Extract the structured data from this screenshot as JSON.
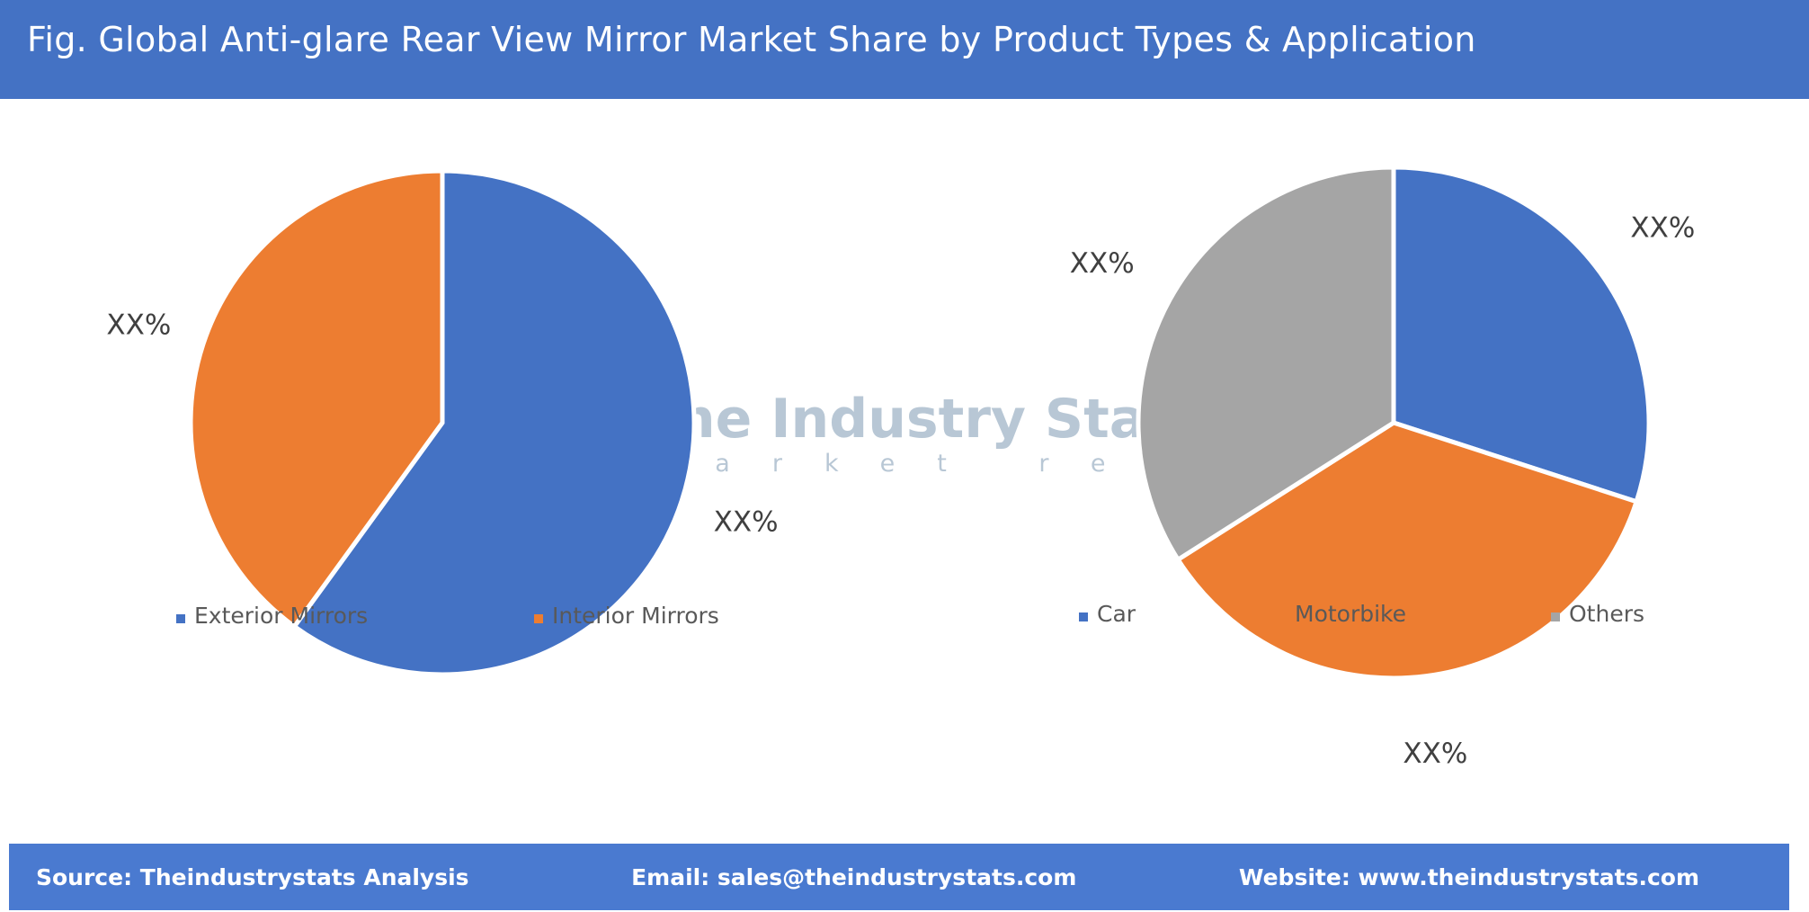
{
  "header": {
    "title": "Fig. Global Anti-glare Rear View Mirror Market Share by Product Types & Application"
  },
  "watermark": {
    "title": "The Industry Stats",
    "subtitle": "market research"
  },
  "chart_data": [
    {
      "type": "pie",
      "categories": [
        "Exterior Mirrors",
        "Interior Mirrors"
      ],
      "values": [
        60,
        40
      ],
      "colors": [
        "#4472c4",
        "#ed7d31"
      ],
      "data_labels": [
        "XX%",
        "XX%"
      ],
      "legend_position": "bottom"
    },
    {
      "type": "pie",
      "categories": [
        "Car",
        "Motorbike",
        "Others"
      ],
      "values": [
        30,
        36,
        34
      ],
      "colors": [
        "#4472c4",
        "#ed7d31",
        "#a5a5a5"
      ],
      "data_labels": [
        "XX%",
        "XX%",
        "XX%"
      ],
      "legend_position": "bottom"
    }
  ],
  "footer": {
    "source": "Source: Theindustrystats Analysis",
    "email": "Email: sales@theindustrystats.com",
    "website": "Website: www.theindustrystats.com"
  }
}
